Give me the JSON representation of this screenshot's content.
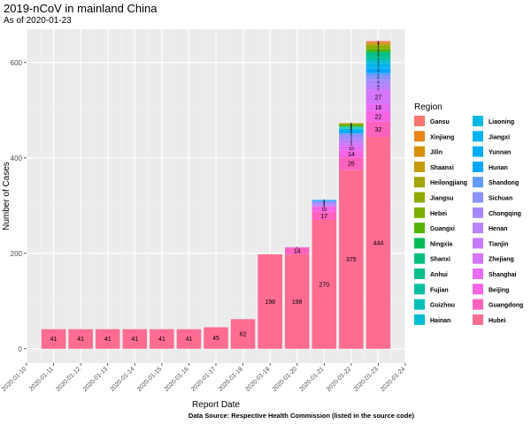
{
  "header": {
    "title": "2019-nCoV in mainland China",
    "subtitle": "As of 2020-01-23",
    "caption": "Data Source: Respective Health Commission (listed in the source code)"
  },
  "chart_data": {
    "type": "bar",
    "stacked": true,
    "xlabel": "Report Date",
    "ylabel": "Number of Cases",
    "ylim": [
      -30,
      670
    ],
    "yticks": [
      0,
      200,
      400,
      600
    ],
    "xrange": [
      "2020-01-10",
      "2020-01-24"
    ],
    "xtick_labels": [
      "2020-01-10",
      "2020-01-11",
      "2020-01-12",
      "2020-01-13",
      "2020-01-14",
      "2020-01-15",
      "2020-01-16",
      "2020-01-17",
      "2020-01-18",
      "2020-01-19",
      "2020-01-20",
      "2020-01-21",
      "2020-01-22",
      "2020-01-23",
      "2020-01-24"
    ],
    "grid": true,
    "legend_title": "Region",
    "legend_placement": "right",
    "categories": [
      "2020-01-11",
      "2020-01-12",
      "2020-01-13",
      "2020-01-14",
      "2020-01-15",
      "2020-01-16",
      "2020-01-17",
      "2020-01-18",
      "2020-01-19",
      "2020-01-20",
      "2020-01-21",
      "2020-01-22",
      "2020-01-23"
    ],
    "series": [
      {
        "name": "Hubei",
        "color": "#FF6C91",
        "values": [
          41,
          41,
          41,
          41,
          41,
          41,
          45,
          62,
          198,
          198,
          270,
          375,
          444
        ]
      },
      {
        "name": "Guangdong",
        "color": "#FF62BC",
        "values": [
          0,
          0,
          0,
          0,
          0,
          0,
          0,
          0,
          0,
          14,
          17,
          26,
          32
        ]
      },
      {
        "name": "Beijing",
        "color": "#F564E3",
        "values": [
          0,
          0,
          0,
          0,
          0,
          0,
          0,
          0,
          0,
          0,
          10,
          14,
          22
        ]
      },
      {
        "name": "Shanghai",
        "color": "#E76BF3",
        "values": [
          0,
          0,
          0,
          0,
          0,
          0,
          0,
          0,
          0,
          1,
          2,
          10,
          16
        ]
      },
      {
        "name": "Zhejiang",
        "color": "#D575FE",
        "values": [
          0,
          0,
          0,
          0,
          0,
          0,
          0,
          0,
          0,
          0,
          0,
          5,
          27
        ]
      },
      {
        "name": "Tianjin",
        "color": "#C77CFF",
        "values": [
          0,
          0,
          0,
          0,
          0,
          0,
          0,
          0,
          0,
          0,
          2,
          4,
          5
        ]
      },
      {
        "name": "Henan",
        "color": "#B983FF",
        "values": [
          0,
          0,
          0,
          0,
          0,
          0,
          0,
          0,
          0,
          0,
          1,
          5,
          9
        ]
      },
      {
        "name": "Chongqing",
        "color": "#A58AFF",
        "values": [
          0,
          0,
          0,
          0,
          0,
          0,
          0,
          0,
          0,
          0,
          5,
          6,
          9
        ]
      },
      {
        "name": "Sichuan",
        "color": "#8B93FF",
        "values": [
          0,
          0,
          0,
          0,
          0,
          0,
          0,
          0,
          0,
          0,
          2,
          5,
          8
        ]
      },
      {
        "name": "Shandong",
        "color": "#619CFF",
        "values": [
          0,
          0,
          0,
          0,
          0,
          0,
          0,
          0,
          0,
          0,
          1,
          2,
          6
        ]
      },
      {
        "name": "Hunan",
        "color": "#00A6FF",
        "values": [
          0,
          0,
          0,
          0,
          0,
          0,
          0,
          0,
          0,
          0,
          1,
          4,
          9
        ]
      },
      {
        "name": "Yunnan",
        "color": "#00ADFA",
        "values": [
          0,
          0,
          0,
          0,
          0,
          0,
          0,
          0,
          0,
          0,
          1,
          1,
          2
        ]
      },
      {
        "name": "Jiangxi",
        "color": "#00B4EF",
        "values": [
          0,
          0,
          0,
          0,
          0,
          0,
          0,
          0,
          0,
          0,
          0,
          2,
          7
        ]
      },
      {
        "name": "Liaoning",
        "color": "#00B9E3",
        "values": [
          0,
          0,
          0,
          0,
          0,
          0,
          0,
          0,
          0,
          0,
          0,
          2,
          3
        ]
      },
      {
        "name": "Hainan",
        "color": "#00BDD4",
        "values": [
          0,
          0,
          0,
          0,
          0,
          0,
          0,
          0,
          0,
          0,
          0,
          1,
          4
        ]
      },
      {
        "name": "Guizhou",
        "color": "#00C0B8",
        "values": [
          0,
          0,
          0,
          0,
          0,
          0,
          0,
          0,
          0,
          0,
          0,
          1,
          3
        ]
      },
      {
        "name": "Fujian",
        "color": "#00C1A3",
        "values": [
          0,
          0,
          0,
          0,
          0,
          0,
          0,
          0,
          0,
          0,
          0,
          1,
          5
        ]
      },
      {
        "name": "Anhui",
        "color": "#00C08B",
        "values": [
          0,
          0,
          0,
          0,
          0,
          0,
          0,
          0,
          0,
          0,
          0,
          1,
          9
        ]
      },
      {
        "name": "Shanxi",
        "color": "#00BF7D",
        "values": [
          0,
          0,
          0,
          0,
          0,
          0,
          0,
          0,
          0,
          0,
          0,
          1,
          1
        ]
      },
      {
        "name": "Ningxia",
        "color": "#00BC56",
        "values": [
          0,
          0,
          0,
          0,
          0,
          0,
          0,
          0,
          0,
          0,
          0,
          1,
          2
        ]
      },
      {
        "name": "Guangxi",
        "color": "#53B400",
        "values": [
          0,
          0,
          0,
          0,
          0,
          0,
          0,
          0,
          0,
          0,
          0,
          2,
          5
        ]
      },
      {
        "name": "Hebei",
        "color": "#7CAE00",
        "values": [
          0,
          0,
          0,
          0,
          0,
          0,
          0,
          0,
          0,
          0,
          0,
          1,
          2
        ]
      },
      {
        "name": "Jiangsu",
        "color": "#8EAB00",
        "values": [
          0,
          0,
          0,
          0,
          0,
          0,
          0,
          0,
          0,
          0,
          0,
          1,
          5
        ]
      },
      {
        "name": "Heilongjiang",
        "color": "#A3A500",
        "values": [
          0,
          0,
          0,
          0,
          0,
          0,
          0,
          0,
          0,
          0,
          0,
          1,
          2
        ]
      },
      {
        "name": "Shaanxi",
        "color": "#C49A00",
        "values": [
          0,
          0,
          0,
          0,
          0,
          0,
          0,
          0,
          0,
          0,
          0,
          0,
          3
        ]
      },
      {
        "name": "Jilin",
        "color": "#D89000",
        "values": [
          0,
          0,
          0,
          0,
          0,
          0,
          0,
          0,
          0,
          0,
          0,
          1,
          1
        ]
      },
      {
        "name": "Xinjiang",
        "color": "#E7861B",
        "values": [
          0,
          0,
          0,
          0,
          0,
          0,
          0,
          0,
          0,
          0,
          0,
          0,
          2
        ]
      },
      {
        "name": "Gansu",
        "color": "#F8766D",
        "values": [
          0,
          0,
          0,
          0,
          0,
          0,
          0,
          0,
          0,
          0,
          0,
          0,
          2
        ]
      }
    ],
    "legend_columns": [
      [
        "Gansu",
        "Xinjiang",
        "Jilin",
        "Shaanxi",
        "Heilongjiang",
        "Jiangsu",
        "Hebei",
        "Guangxi",
        "Ningxia",
        "Shanxi",
        "Anhui",
        "Fujian",
        "Guizhou",
        "Hainan"
      ],
      [
        "Liaoning",
        "Jiangxi",
        "Yunnan",
        "Hunan",
        "Shandong",
        "Sichuan",
        "Chongqing",
        "Henan",
        "Tianjin",
        "Zhejiang",
        "Shanghai",
        "Beijing",
        "Guangdong",
        "Hubei"
      ]
    ]
  }
}
